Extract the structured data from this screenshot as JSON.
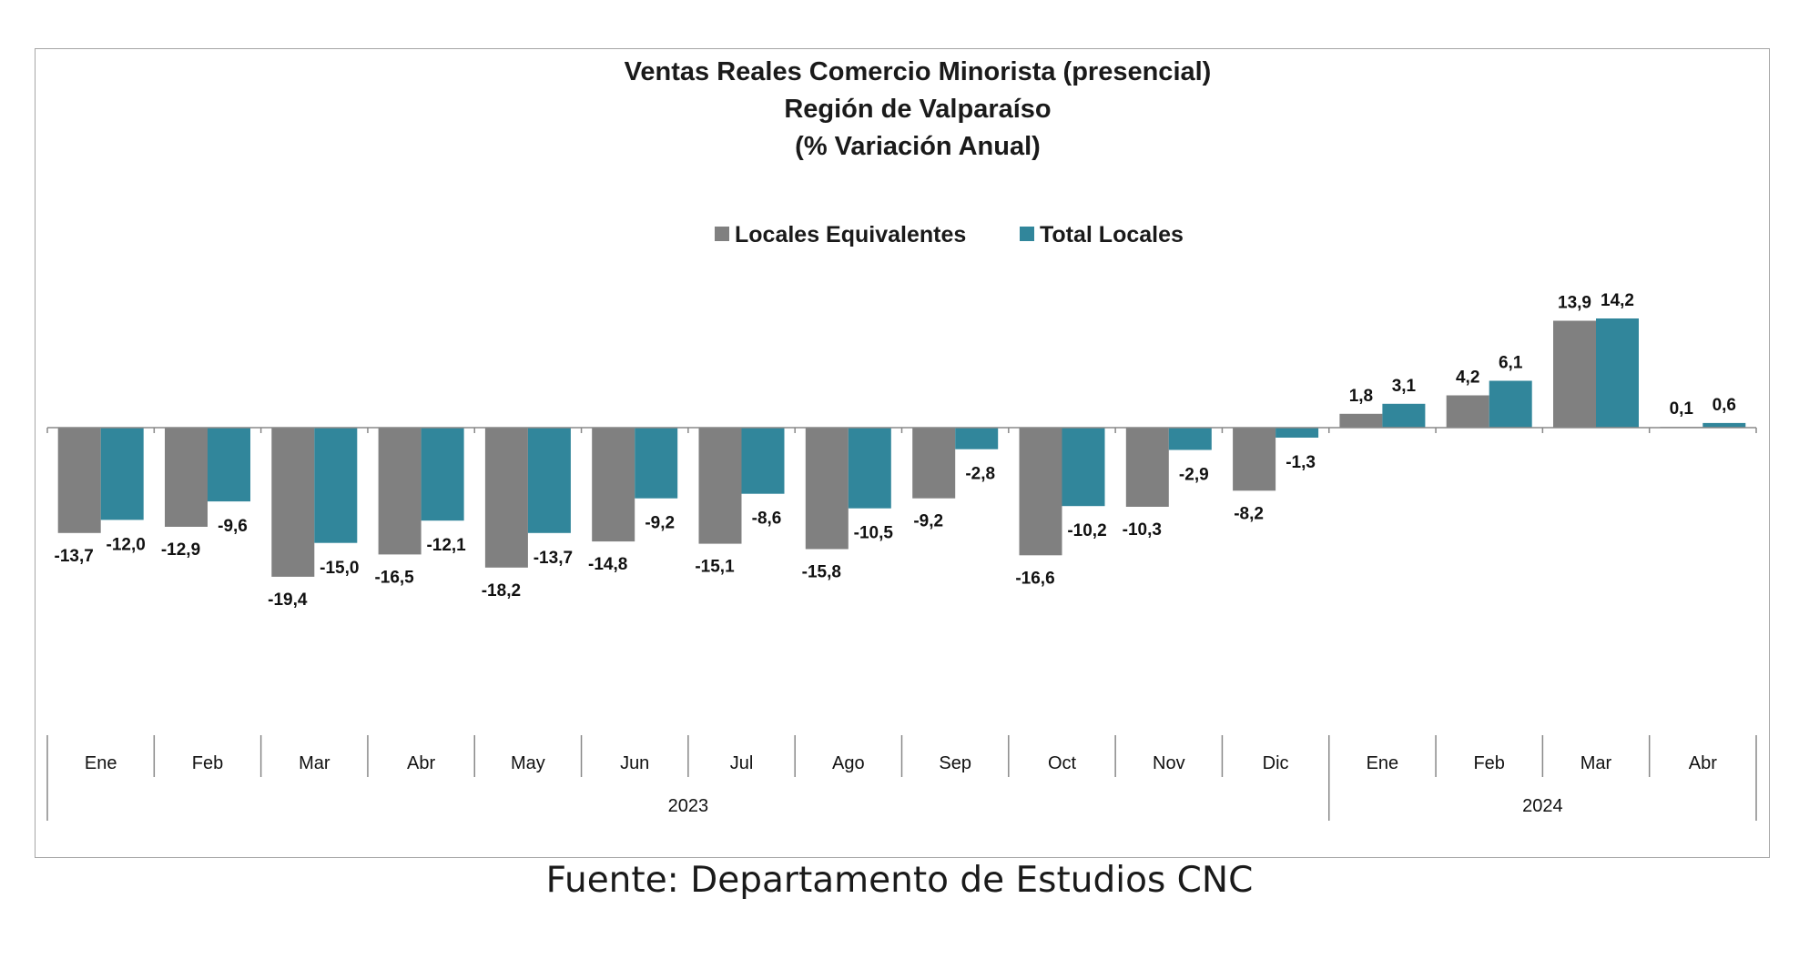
{
  "chart_data": {
    "type": "bar",
    "title": [
      "Ventas Reales Comercio Minorista (presencial)",
      "Región de Valparaíso",
      "(% Variación Anual)"
    ],
    "categories": [
      "Ene",
      "Feb",
      "Mar",
      "Abr",
      "May",
      "Jun",
      "Jul",
      "Ago",
      "Sep",
      "Oct",
      "Nov",
      "Dic",
      "Ene",
      "Feb",
      "Mar",
      "Abr"
    ],
    "category_groups": [
      {
        "label": "2023",
        "count": 12
      },
      {
        "label": "2024",
        "count": 4
      }
    ],
    "series": [
      {
        "name": "Locales Equivalentes",
        "color": "#808080",
        "values": [
          -13.7,
          -12.9,
          -19.4,
          -16.5,
          -18.2,
          -14.8,
          -15.1,
          -15.8,
          -9.2,
          -16.6,
          -10.3,
          -8.2,
          1.8,
          4.2,
          13.9,
          0.1
        ],
        "labels": [
          "-13,7",
          "-12,9",
          "-19,4",
          "-16,5",
          "-18,2",
          "-14,8",
          "-15,1",
          "-15,8",
          "-9,2",
          "-16,6",
          "-10,3",
          "-8,2",
          "1,8",
          "4,2",
          "13,9",
          "0,1"
        ]
      },
      {
        "name": "Total Locales",
        "color": "#31869b",
        "values": [
          -12.0,
          -9.6,
          -15.0,
          -12.1,
          -13.7,
          -9.2,
          -8.6,
          -10.5,
          -2.8,
          -10.2,
          -2.9,
          -1.3,
          3.1,
          6.1,
          14.2,
          0.6
        ],
        "labels": [
          "-12,0",
          "-9,6",
          "-15,0",
          "-12,1",
          "-13,7",
          "-9,2",
          "-8,6",
          "-10,5",
          "-2,8",
          "-10,2",
          "-2,9",
          "-1,3",
          "3,1",
          "6,1",
          "14,2",
          "0,6"
        ]
      }
    ],
    "legend_position": "top-center",
    "grid": false
  },
  "source": "Fuente: Departamento de Estudios CNC"
}
